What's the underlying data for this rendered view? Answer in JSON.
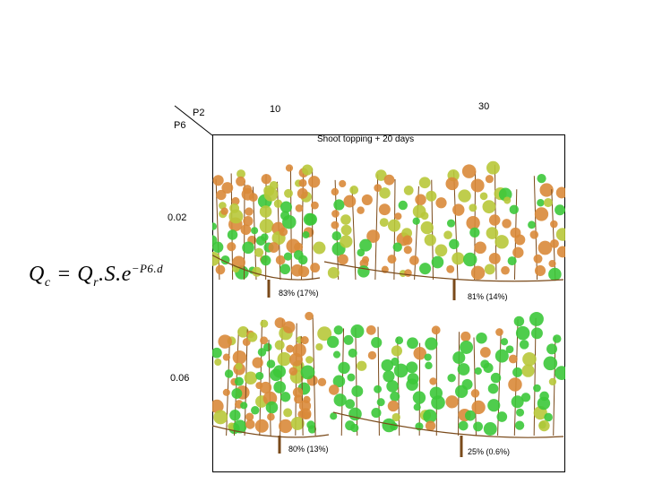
{
  "formula": {
    "lhs": "Q",
    "lhs_sub": "c",
    "rhs_q": "Q",
    "rhs_sub": "r",
    "rhs_rest": ".S.e",
    "exponent": "−P6.d"
  },
  "axes": {
    "p2_label": "P2",
    "p6_label": "P6",
    "columns": [
      "10",
      "30"
    ],
    "rows": [
      "0.02",
      "0.06"
    ]
  },
  "panel_title": "Shoot topping + 20 days",
  "panels": [
    {
      "row": "0.02",
      "col": "10",
      "label": "83% (17%)",
      "fraction_senescent": 0.83
    },
    {
      "row": "0.02",
      "col": "30",
      "label": "81% (14%)",
      "fraction_senescent": 0.81
    },
    {
      "row": "0.06",
      "col": "10",
      "label": "80% (13%)",
      "fraction_senescent": 0.8
    },
    {
      "row": "0.06",
      "col": "30",
      "label": "25% (0.6%)",
      "fraction_senescent": 0.25
    }
  ],
  "colors": {
    "orange": "#d9893a",
    "yellow_green": "#b8c83a",
    "green": "#3cc83a",
    "trunk": "#7a4a1a"
  }
}
